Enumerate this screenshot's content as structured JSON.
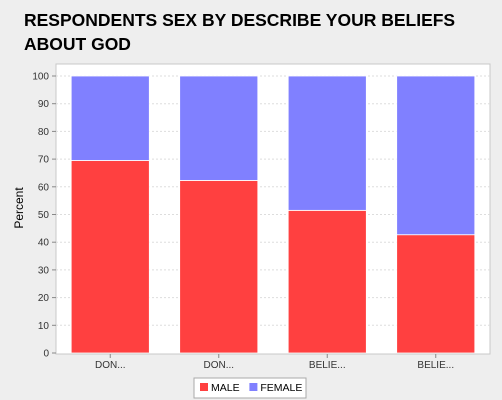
{
  "chart_data": {
    "type": "bar",
    "stacked": true,
    "title": "RESPONDENTS SEX BY DESCRIBE YOUR BELIEFS ABOUT GOD",
    "ylabel": "Percent",
    "xlabel": "",
    "ylim": [
      0,
      100
    ],
    "yticks": [
      0,
      10,
      20,
      30,
      40,
      50,
      60,
      70,
      80,
      90,
      100
    ],
    "grid": true,
    "legend_position": "bottom",
    "categories": [
      "DON...",
      "DON...",
      "BELIE...",
      "BELIE..."
    ],
    "series": [
      {
        "name": "MALE",
        "color": "#ff4040",
        "values": [
          69.5,
          62.3,
          51.5,
          42.7
        ]
      },
      {
        "name": "FEMALE",
        "color": "#8080ff",
        "values": [
          30.5,
          37.7,
          48.5,
          57.3
        ]
      }
    ]
  }
}
